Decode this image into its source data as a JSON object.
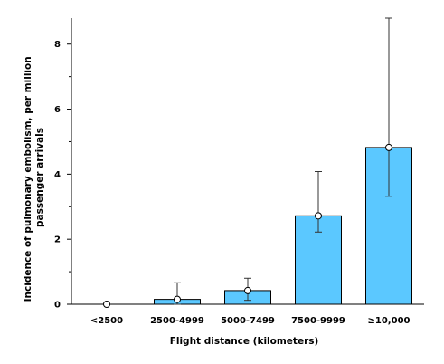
{
  "chart_data": {
    "type": "bar",
    "categories": [
      "<2500",
      "2500-4999",
      "5000-7499",
      "7500-9999",
      "≥10,000"
    ],
    "values": [
      0.0,
      0.15,
      0.42,
      2.72,
      4.82
    ],
    "error_low": [
      0.0,
      0.0,
      0.12,
      2.22,
      3.32
    ],
    "error_high": [
      0.0,
      0.66,
      0.8,
      4.08,
      8.8
    ],
    "xlabel": "Flight distance (kilometers)",
    "ylabel_lines": [
      "Incidence of pulmonary embolism, per million",
      "passenger arrivals"
    ],
    "ylim": [
      0,
      8.8
    ],
    "yticks": [
      0,
      2,
      4,
      6,
      8
    ],
    "bar_color": "#5bc8ff",
    "grid": false
  }
}
